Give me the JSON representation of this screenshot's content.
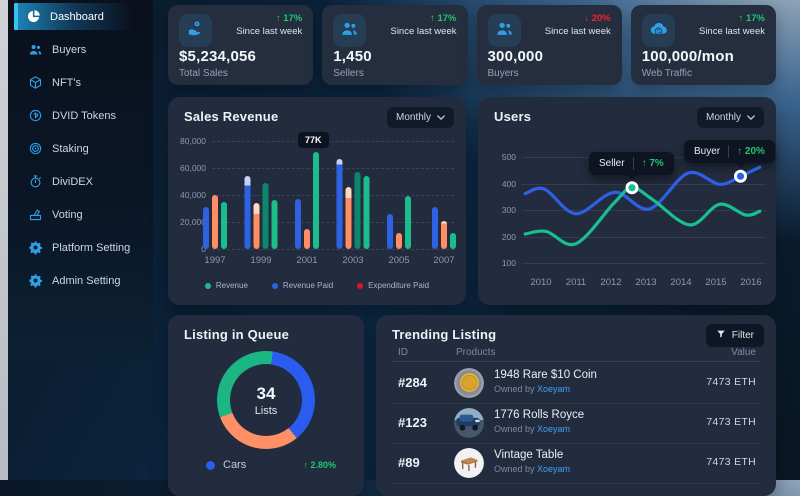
{
  "colors": {
    "accent": "#2f9fe8",
    "positive": "#1fc76f",
    "negative": "#f5212d",
    "link": "#3fa1f0",
    "bar_blue": "#2e62e2",
    "bar_orange": "#ff8d63",
    "bar_green": "#1cbd8d",
    "bar_green_dark": "#0d8670",
    "cap_blue": "#c7d2f7",
    "cap_orange": "#ffd8c2",
    "legend_red": "#e01424",
    "line_blue": "#2e5fe8",
    "line_green": "#17c08f",
    "donut_blue": "#2b5cf0",
    "donut_orange": "#ff9066",
    "donut_green": "#1cb584"
  },
  "sidebar": {
    "items": [
      {
        "label": "Dashboard",
        "icon": "pie",
        "active": true
      },
      {
        "label": "Buyers",
        "icon": "users",
        "active": false
      },
      {
        "label": "NFT's",
        "icon": "box",
        "active": false
      },
      {
        "label": "DVID Tokens",
        "icon": "coin",
        "active": false
      },
      {
        "label": "Staking",
        "icon": "target",
        "active": false
      },
      {
        "label": "DiviDEX",
        "icon": "timer",
        "active": false
      },
      {
        "label": "Voting",
        "icon": "vote",
        "active": false
      },
      {
        "label": "Platform Setting",
        "icon": "gear",
        "active": false
      },
      {
        "label": "Admin Setting",
        "icon": "gear",
        "active": false
      }
    ]
  },
  "stat_cards": [
    {
      "value": "$5,234,056",
      "label": "Total Sales",
      "delta": "17%",
      "direction": "up",
      "period": "Since last week",
      "icon": "hand-coin"
    },
    {
      "value": "1,450",
      "label": "Sellers",
      "delta": "17%",
      "direction": "up",
      "period": "Since last week",
      "icon": "users"
    },
    {
      "value": "300,000",
      "label": "Buyers",
      "delta": "20%",
      "direction": "down",
      "period": "Since last week",
      "icon": "users"
    },
    {
      "value": "100,000/mon",
      "label": "Web Traffic",
      "delta": "17%",
      "direction": "up",
      "period": "Since last week",
      "icon": "cloud"
    }
  ],
  "sales_panel": {
    "title": "Sales Revenue",
    "range_label": "Monthly"
  },
  "users_panel": {
    "title": "Users",
    "range_label": "Monthly"
  },
  "queue_panel": {
    "title": "Listing in Queue",
    "center_value": "34",
    "center_label": "Lists",
    "legend_label": "Cars",
    "legend_delta": "2.80%"
  },
  "trending": {
    "title": "Trending Listing",
    "filter_label": "Filter",
    "columns": [
      "ID",
      "Products",
      "Value"
    ],
    "owned_prefix": "Owned by",
    "rows": [
      {
        "id": "#284",
        "name": "1948 Rare $10 Coin",
        "owner": "Xoeyam",
        "value": "7473 ETH",
        "image": "img-coin"
      },
      {
        "id": "#123",
        "name": "1776 Rolls Royce",
        "owner": "Xoeyam",
        "value": "7473 ETH",
        "image": "img-car"
      },
      {
        "id": "#89",
        "name": "Vintage Table",
        "owner": "Xoeyam",
        "value": "7473 ETH",
        "image": "img-table"
      }
    ]
  },
  "chart_data": [
    {
      "id": "sales_revenue",
      "type": "bar",
      "title": "Sales Revenue",
      "categories": [
        "1997",
        "1999",
        "2001",
        "2003",
        "2005",
        "2007"
      ],
      "series": [
        {
          "name": "Revenue Paid",
          "color_key": "bar_blue",
          "cap_color_key": "cap_blue",
          "values": [
            31000,
            47000,
            37000,
            63000,
            26000,
            31000
          ],
          "cap_values": [
            null,
            54000,
            null,
            67000,
            null,
            null
          ]
        },
        {
          "name": "Expenditure Paid",
          "color_key": "bar_orange",
          "cap_color_key": "cap_orange",
          "values": [
            40000,
            26000,
            15000,
            38000,
            12000,
            19000
          ],
          "cap_values": [
            null,
            34000,
            null,
            46000,
            null,
            21000
          ]
        },
        {
          "name": "Revenue (dark)",
          "color_key": "bar_green_dark",
          "cap_color_key": null,
          "values": [
            null,
            49000,
            null,
            57000,
            null,
            null
          ],
          "cap_values": [
            null,
            null,
            null,
            null,
            null,
            null
          ]
        },
        {
          "name": "Revenue",
          "color_key": "bar_green",
          "cap_color_key": null,
          "values": [
            35000,
            36000,
            72000,
            54000,
            39000,
            12000
          ],
          "cap_values": [
            null,
            null,
            null,
            null,
            null,
            null
          ]
        }
      ],
      "annotation": {
        "label": "77K",
        "category": "2001"
      },
      "legend": [
        {
          "label": "Revenue",
          "color_key": "bar_green"
        },
        {
          "label": "Revenue Paid",
          "color_key": "bar_blue"
        },
        {
          "label": "Expenditure Paid",
          "color_key": "legend_red"
        }
      ],
      "ylim": [
        0,
        80000
      ],
      "yticks": [
        {
          "label": "80,000",
          "value": 80000
        },
        {
          "label": "60,000",
          "value": 60000
        },
        {
          "label": "40,000",
          "value": 40000
        },
        {
          "label": "20,000",
          "value": 20000
        },
        {
          "label": "0",
          "value": 0
        }
      ],
      "grid": "dashed",
      "legend_position": "bottom-center"
    },
    {
      "id": "users",
      "type": "line",
      "title": "Users",
      "x_ticks": [
        "2010",
        "2011",
        "2012",
        "2013",
        "2014",
        "2015",
        "2016"
      ],
      "ylim": [
        100,
        500
      ],
      "yticks": [
        {
          "label": "500",
          "value": 500
        },
        {
          "label": "400",
          "value": 400
        },
        {
          "label": "300",
          "value": 300
        },
        {
          "label": "200",
          "value": 200
        },
        {
          "label": "100",
          "value": 100
        }
      ],
      "series": [
        {
          "name": "Buyer",
          "color_key": "line_blue",
          "x": [
            2009.55,
            2010.1,
            2011,
            2012.1,
            2013.1,
            2014.2,
            2015.1,
            2015.7,
            2016.25
          ],
          "values": [
            363,
            380,
            288,
            368,
            306,
            440,
            398,
            428,
            462
          ]
        },
        {
          "name": "Seller",
          "color_key": "line_green",
          "x": [
            2009.55,
            2010.15,
            2011,
            2012.1,
            2012.6,
            2013.2,
            2014.25,
            2015.1,
            2015.85,
            2016.25
          ],
          "values": [
            212,
            222,
            176,
            330,
            385,
            340,
            246,
            323,
            283,
            297
          ]
        }
      ],
      "markers": [
        {
          "series": "Seller",
          "color_key": "line_green",
          "x": 2012.6,
          "value": 385,
          "tooltip_label": "Seller",
          "tooltip_delta": "7%"
        },
        {
          "series": "Buyer",
          "color_key": "line_blue",
          "x": 2015.7,
          "value": 428,
          "tooltip_label": "Buyer",
          "tooltip_delta": "20%"
        }
      ],
      "grid": "solid",
      "legend_position": "none"
    },
    {
      "id": "listing_in_queue",
      "type": "pie",
      "title": "Listing in Queue",
      "center_value": "34",
      "center_label": "Lists",
      "start_deg": 8,
      "segments": [
        {
          "label": "Cars",
          "color_key": "donut_blue",
          "pct": 37
        },
        {
          "label": "",
          "color_key": "donut_orange",
          "pct": 30
        },
        {
          "label": "",
          "color_key": "donut_green",
          "pct": 33
        }
      ],
      "legend": [
        {
          "label": "Cars",
          "color_key": "donut_blue",
          "delta": "2.80%",
          "direction": "up"
        }
      ]
    }
  ]
}
